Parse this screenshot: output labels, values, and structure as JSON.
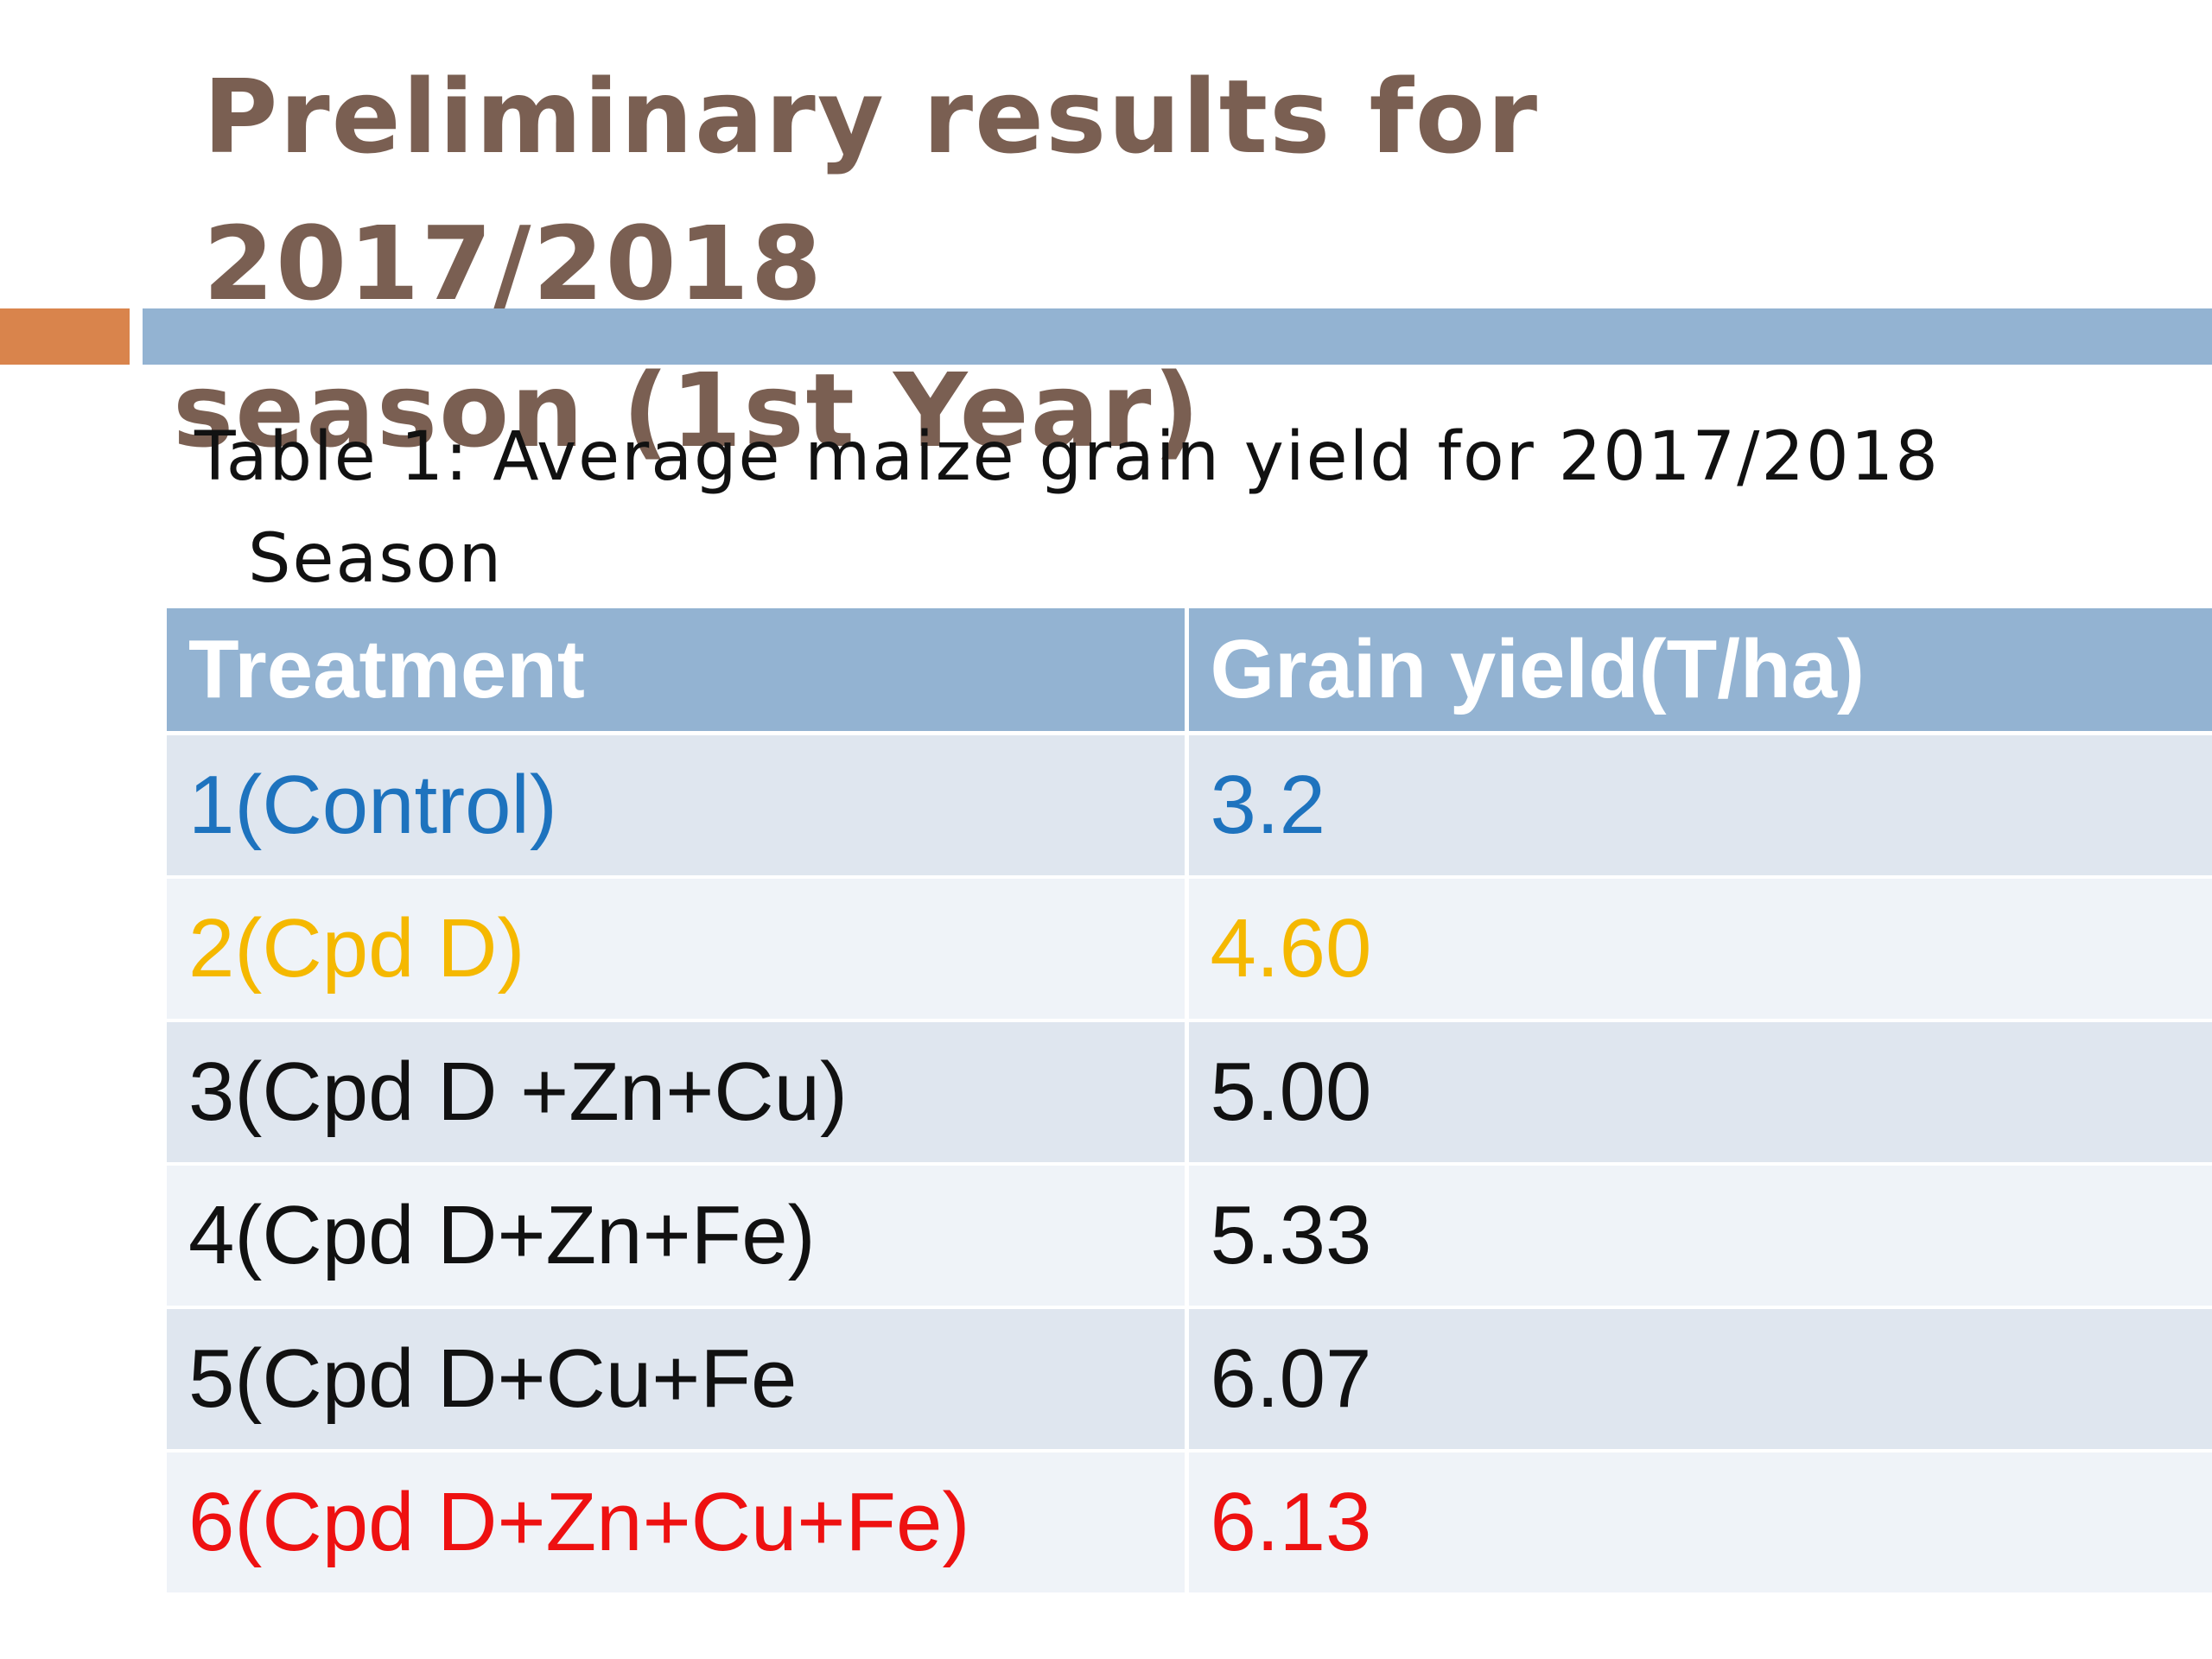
{
  "slide": {
    "title_line1": "Preliminary results for 2017/2018",
    "title_line2": "season (1st Year)",
    "caption_line1": "Table 1: Average maize grain yield for 2017/2018",
    "caption_line2": "Season"
  },
  "table": {
    "headers": [
      "Treatment",
      "Grain yield(T/ha)"
    ],
    "header_bg": "#93b3d2",
    "rows": [
      {
        "treatment": "1(Control)",
        "yield": "3.2",
        "color": "#1e73be"
      },
      {
        "treatment": "2(Cpd D)",
        "yield": "4.60",
        "color": "#f5b800"
      },
      {
        "treatment": "3(Cpd D +Zn+Cu)",
        "yield": "5.00",
        "color": "#111111"
      },
      {
        "treatment": "4(Cpd D+Zn+Fe)",
        "yield": "5.33",
        "color": "#111111"
      },
      {
        "treatment": "5(Cpd D+Cu+Fe",
        "yield": "6.07",
        "color": "#111111"
      },
      {
        "treatment": "6(Cpd D+Zn+Cu+Fe)",
        "yield": "6.13",
        "color": "#ee1111"
      }
    ]
  },
  "colors": {
    "title": "#7a5f52",
    "accent_orange": "#d9844c",
    "accent_blue": "#93b3d2"
  }
}
